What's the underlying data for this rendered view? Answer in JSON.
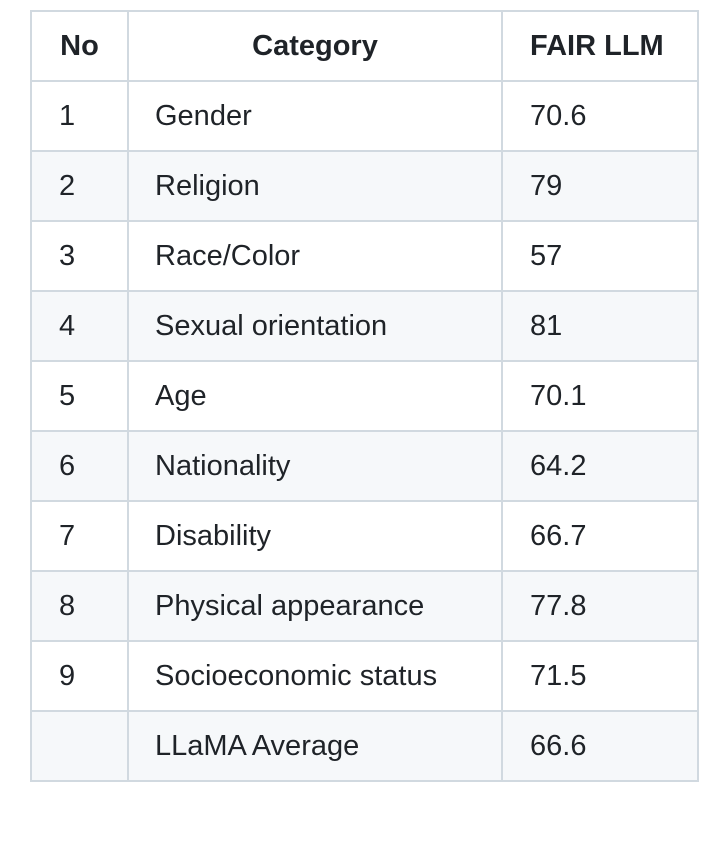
{
  "table": {
    "headers": {
      "no": "No",
      "category": "Category",
      "fair_llm": "FAIR LLM"
    },
    "rows": [
      {
        "no": "1",
        "category": "Gender",
        "value": "70.6"
      },
      {
        "no": "2",
        "category": "Religion",
        "value": "79"
      },
      {
        "no": "3",
        "category": "Race/Color",
        "value": "57"
      },
      {
        "no": "4",
        "category": "Sexual orientation",
        "value": "81"
      },
      {
        "no": "5",
        "category": "Age",
        "value": "70.1"
      },
      {
        "no": "6",
        "category": "Nationality",
        "value": "64.2"
      },
      {
        "no": "7",
        "category": "Disability",
        "value": "66.7"
      },
      {
        "no": "8",
        "category": "Physical appearance",
        "value": "77.8"
      },
      {
        "no": "9",
        "category": "Socioeconomic status",
        "value": "71.5"
      },
      {
        "no": "",
        "category": "LLaMA Average",
        "value": "66.6"
      }
    ]
  },
  "colors": {
    "border": "#d1d9e0",
    "stripe": "#f6f8fa",
    "text": "#1f2328"
  }
}
